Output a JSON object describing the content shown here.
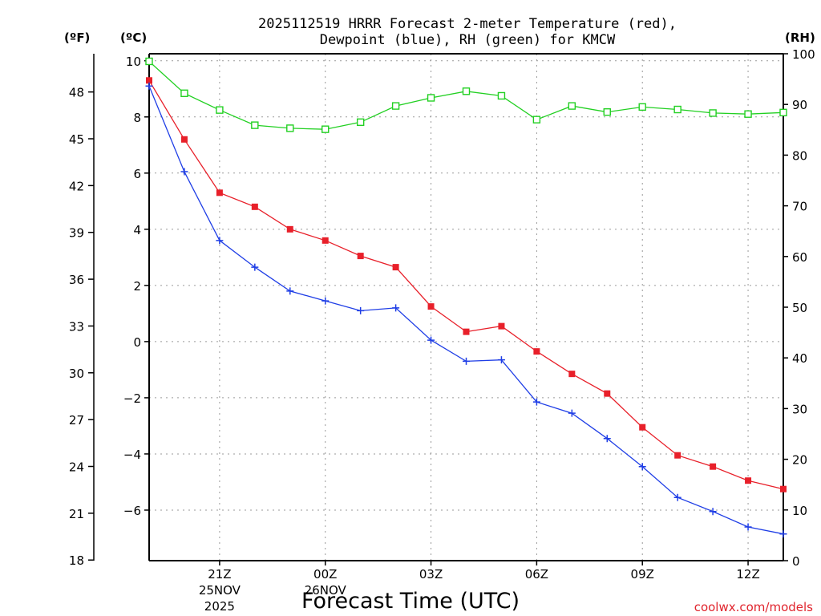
{
  "chart_data": {
    "type": "line",
    "title_line1": "2025112519 HRRR Forecast 2-meter Temperature (red),",
    "title_line2": "Dewpoint (blue), RH (green) for KMCW",
    "xlabel": "Forecast Time (UTC)",
    "credit": "coolwx.com/models",
    "units": {
      "f": "(ºF)",
      "c": "(ºC)",
      "rh": "(RH)"
    },
    "x_hours": [
      0,
      1,
      2,
      3,
      4,
      5,
      6,
      7,
      8,
      9,
      10,
      11,
      12,
      13,
      14,
      15,
      16,
      17,
      18
    ],
    "x_ticks": [
      {
        "hour": 2,
        "lines": [
          "21Z",
          "25NOV",
          "2025"
        ]
      },
      {
        "hour": 5,
        "lines": [
          "00Z",
          "26NOV",
          ""
        ]
      },
      {
        "hour": 8,
        "lines": [
          "03Z",
          "",
          ""
        ]
      },
      {
        "hour": 11,
        "lines": [
          "06Z",
          "",
          ""
        ]
      },
      {
        "hour": 14,
        "lines": [
          "09Z",
          "",
          ""
        ]
      },
      {
        "hour": 17,
        "lines": [
          "12Z",
          "",
          ""
        ]
      }
    ],
    "x_range": [
      0,
      18
    ],
    "c_range": [
      -7.8,
      10.25
    ],
    "c_ticks": [
      10,
      8,
      6,
      4,
      2,
      0,
      -2,
      -4,
      -6
    ],
    "f_ticks": [
      48,
      45,
      42,
      39,
      36,
      33,
      30,
      27,
      24,
      21,
      18
    ],
    "rh_range": [
      0,
      100
    ],
    "rh_ticks": [
      100,
      90,
      80,
      70,
      60,
      50,
      40,
      30,
      20,
      10,
      0
    ],
    "series": [
      {
        "name": "Temperature",
        "axis": "c",
        "color": "#e8202a",
        "marker": "filled-square",
        "values": [
          9.3,
          7.2,
          5.3,
          4.8,
          4.0,
          3.6,
          3.05,
          2.65,
          1.25,
          0.35,
          0.55,
          -0.35,
          -1.15,
          -1.85,
          -3.05,
          -4.05,
          -4.45,
          -4.95,
          -5.25
        ]
      },
      {
        "name": "Dewpoint",
        "axis": "c",
        "color": "#1f3ee6",
        "marker": "plus",
        "values": [
          9.1,
          6.05,
          3.6,
          2.65,
          1.8,
          1.45,
          1.1,
          1.2,
          0.05,
          -0.7,
          -0.65,
          -2.15,
          -2.55,
          -3.45,
          -4.45,
          -5.55,
          -6.05,
          -6.6,
          -6.85
        ]
      },
      {
        "name": "RH",
        "axis": "rh",
        "color": "#22d022",
        "marker": "open-square",
        "values": [
          98.5,
          92.2,
          88.9,
          85.9,
          85.3,
          85.1,
          86.5,
          89.7,
          91.3,
          92.6,
          91.7,
          87.0,
          89.7,
          88.5,
          89.5,
          89.0,
          88.3,
          88.1,
          88.4
        ]
      }
    ]
  }
}
